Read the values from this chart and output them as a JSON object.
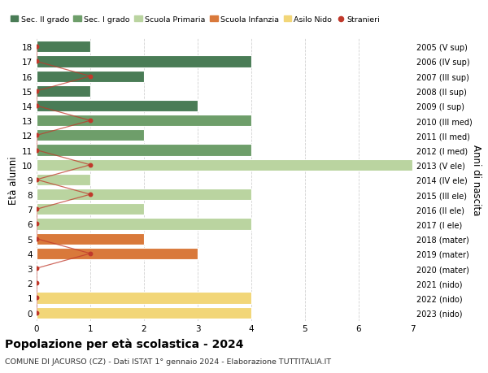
{
  "ages": [
    18,
    17,
    16,
    15,
    14,
    13,
    12,
    11,
    10,
    9,
    8,
    7,
    6,
    5,
    4,
    3,
    2,
    1,
    0
  ],
  "years_labels": [
    "2005 (V sup)",
    "2006 (IV sup)",
    "2007 (III sup)",
    "2008 (II sup)",
    "2009 (I sup)",
    "2010 (III med)",
    "2011 (II med)",
    "2012 (I med)",
    "2013 (V ele)",
    "2014 (IV ele)",
    "2015 (III ele)",
    "2016 (II ele)",
    "2017 (I ele)",
    "2018 (mater)",
    "2019 (mater)",
    "2020 (mater)",
    "2021 (nido)",
    "2022 (nido)",
    "2023 (nido)"
  ],
  "bar_values": [
    1,
    4,
    2,
    1,
    3,
    4,
    2,
    4,
    7,
    1,
    4,
    2,
    4,
    2,
    3,
    0,
    0,
    4,
    4
  ],
  "bar_colors": [
    "#4a7c56",
    "#4a7c56",
    "#4a7c56",
    "#4a7c56",
    "#4a7c56",
    "#6e9e6a",
    "#6e9e6a",
    "#6e9e6a",
    "#bad4a0",
    "#bad4a0",
    "#bad4a0",
    "#bad4a0",
    "#bad4a0",
    "#d9793b",
    "#d9793b",
    "#d9793b",
    "#f2d678",
    "#f2d678",
    "#f2d678"
  ],
  "stranieri_values": [
    0,
    0,
    1,
    0,
    0,
    1,
    0,
    0,
    1,
    0,
    1,
    0,
    0,
    0,
    1,
    0,
    0,
    0,
    0
  ],
  "legend_labels": [
    "Sec. II grado",
    "Sec. I grado",
    "Scuola Primaria",
    "Scuola Infanzia",
    "Asilo Nido",
    "Stranieri"
  ],
  "legend_colors": [
    "#4a7c56",
    "#6e9e6a",
    "#bad4a0",
    "#d9793b",
    "#f2d678",
    "#c0392b"
  ],
  "ylabel": "Età alunni",
  "ylabel2": "Anni di nascita",
  "title": "Popolazione per età scolastica - 2024",
  "subtitle": "COMUNE DI JACURSO (CZ) - Dati ISTAT 1° gennaio 2024 - Elaborazione TUTTITALIA.IT",
  "xlim": [
    0,
    7
  ],
  "ylim_min": -0.55,
  "ylim_max": 18.55,
  "background_color": "#ffffff",
  "grid_color": "#cccccc",
  "bar_height": 0.78
}
